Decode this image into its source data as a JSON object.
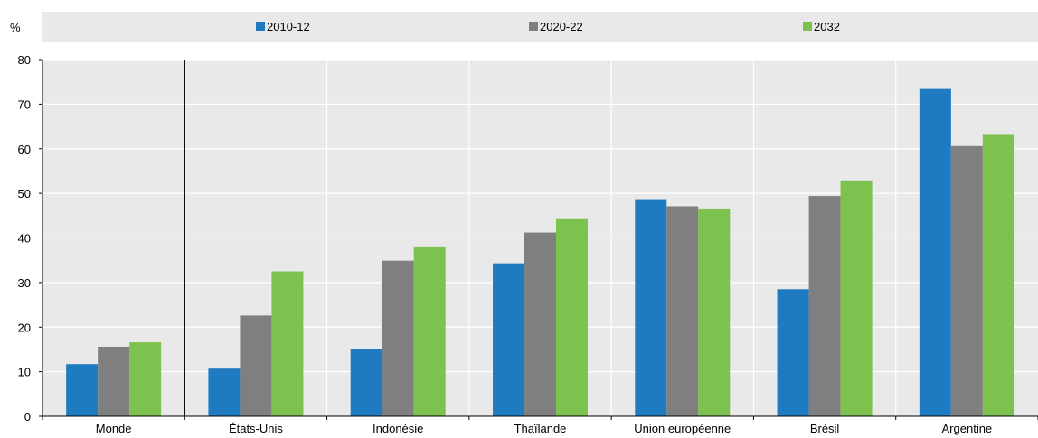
{
  "chart_data": {
    "type": "bar",
    "ylabel": "%",
    "ylim": [
      0,
      80
    ],
    "yticks": [
      "0",
      "10",
      "20",
      "30",
      "40",
      "50",
      "60",
      "70",
      "80"
    ],
    "categories": [
      "Monde",
      "États-Unis",
      "Indonésie",
      "Thaïlande",
      "Union européenne",
      "Brésil",
      "Argentine"
    ],
    "series": [
      {
        "name": "2010-12",
        "color": "#1f7bc1",
        "values": [
          11.7,
          10.7,
          15.1,
          34.3,
          48.7,
          28.5,
          73.6
        ]
      },
      {
        "name": "2020-22",
        "color": "#7f7f7f",
        "values": [
          15.6,
          22.6,
          34.9,
          41.2,
          47.1,
          49.4,
          60.6
        ]
      },
      {
        "name": "2032",
        "color": "#7dc24f",
        "values": [
          16.6,
          32.5,
          38.1,
          44.4,
          46.6,
          52.9,
          63.3
        ]
      }
    ],
    "grid": true,
    "legend_position": "top",
    "separator_after_category": "Monde",
    "plot_background": "#e9e9e9",
    "gridline_color": "#ffffff"
  }
}
